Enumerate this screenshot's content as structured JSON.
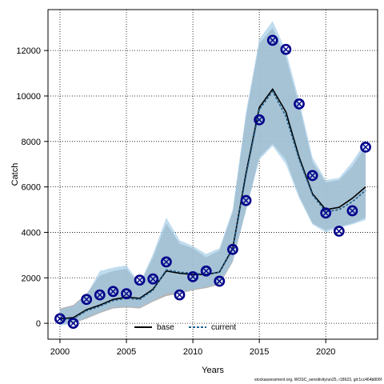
{
  "chart_data": {
    "type": "line",
    "title": "",
    "xlabel": "Years",
    "ylabel": "Catch",
    "xlim": [
      1999.1,
      2023.9
    ],
    "ylim": [
      -700,
      13800
    ],
    "xticks": [
      2000,
      2005,
      2010,
      2015,
      2020
    ],
    "yticks": [
      0,
      2000,
      4000,
      6000,
      8000,
      10000,
      12000
    ],
    "grid": true,
    "legend_position": "bottom-center",
    "colors": {
      "base_line": "#000000",
      "current_line": "#1f5f8b",
      "base_band": "#a8a8a8",
      "current_band": "#9ec9e6",
      "observed": "#00008b"
    },
    "x": [
      2000,
      2001,
      2002,
      2003,
      2004,
      2005,
      2006,
      2007,
      2008,
      2009,
      2010,
      2011,
      2012,
      2013,
      2014,
      2015,
      2016,
      2017,
      2018,
      2019,
      2020,
      2021,
      2022,
      2023
    ],
    "observed": [
      200,
      0,
      1050,
      1250,
      1400,
      1300,
      1900,
      1950,
      2700,
      1250,
      2050,
      2300,
      1850,
      3250,
      5400,
      8950,
      12450,
      12050,
      9650,
      6500,
      4850,
      4050,
      4950,
      7750
    ],
    "series": [
      {
        "name": "base",
        "values": [
          200,
          250,
          600,
          800,
          1050,
          1150,
          1100,
          1500,
          2300,
          2200,
          2150,
          2150,
          2250,
          3300,
          6600,
          9500,
          10300,
          9300,
          7300,
          5700,
          5000,
          5100,
          5500,
          6000
        ],
        "lower": [
          -50,
          0,
          200,
          450,
          650,
          700,
          650,
          950,
          1200,
          1300,
          1450,
          1550,
          1700,
          2700,
          5000,
          7300,
          7900,
          7200,
          5600,
          4400,
          4100,
          4250,
          4400,
          4650
        ],
        "upper": [
          650,
          800,
          1300,
          2100,
          2300,
          2400,
          1700,
          2900,
          4400,
          3500,
          3300,
          2900,
          3200,
          4900,
          9100,
          12300,
          13000,
          11700,
          9600,
          7100,
          6200,
          6300,
          6900,
          7800
        ]
      },
      {
        "name": "current",
        "values": [
          150,
          200,
          550,
          750,
          1000,
          1100,
          1050,
          1450,
          2350,
          2250,
          2200,
          2150,
          2250,
          3250,
          6500,
          9400,
          10200,
          9100,
          7200,
          5650,
          4900,
          5000,
          5350,
          5850
        ],
        "lower": [
          -100,
          0,
          250,
          500,
          700,
          750,
          700,
          1000,
          1300,
          1350,
          1500,
          1600,
          1750,
          2750,
          4950,
          7200,
          7800,
          7000,
          5500,
          4350,
          4000,
          4200,
          4350,
          4550
        ],
        "upper": [
          600,
          750,
          1250,
          2300,
          2450,
          2550,
          1750,
          3050,
          4650,
          3650,
          3400,
          3050,
          3300,
          5000,
          9300,
          12500,
          13300,
          12000,
          9800,
          7300,
          6300,
          6400,
          7100,
          8000
        ]
      }
    ]
  },
  "footer": "stockassessment.org, WOSC_sensitivityrun25, r18623, git:1cc464b806f"
}
